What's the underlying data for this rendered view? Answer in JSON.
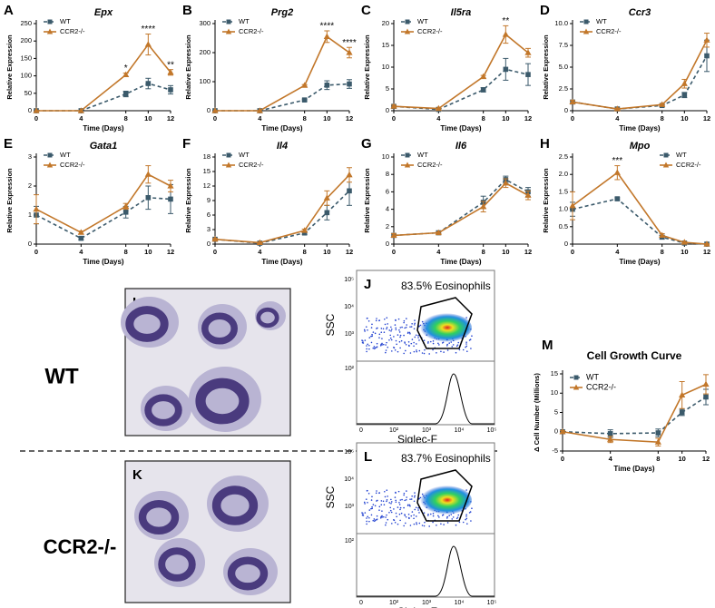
{
  "chart_data": [
    {
      "type": "line",
      "panel": "A",
      "title": "Epx",
      "xlabel": "Time (Days)",
      "ylabel": "Relative Expression",
      "x": [
        0,
        4,
        8,
        10,
        12
      ],
      "xlim": [
        0,
        12
      ],
      "xticks": [
        0,
        4,
        8,
        10,
        12
      ],
      "ylim": [
        0,
        250
      ],
      "yticks": [
        0,
        50,
        100,
        150,
        200,
        250
      ],
      "legend": "upper left",
      "series": [
        {
          "name": "WT",
          "color": "#3b5a6b",
          "dashed": true,
          "marker": "square",
          "values": [
            0,
            0,
            48,
            78,
            60
          ],
          "errors": [
            0,
            0,
            8,
            15,
            12
          ]
        },
        {
          "name": "CCR2-/-",
          "color": "#c2772a",
          "dashed": false,
          "marker": "triangle",
          "values": [
            0,
            0,
            103,
            190,
            110
          ],
          "errors": [
            0,
            0,
            5,
            30,
            8
          ]
        }
      ],
      "annotations": [
        {
          "text": "*",
          "x": 8
        },
        {
          "text": "****",
          "x": 10
        },
        {
          "text": "**",
          "x": 12
        }
      ]
    },
    {
      "type": "line",
      "panel": "B",
      "title": "Prg2",
      "xlabel": "Time (Days)",
      "ylabel": "Relative Expression",
      "x": [
        0,
        4,
        8,
        10,
        12
      ],
      "xlim": [
        0,
        12
      ],
      "xticks": [
        0,
        4,
        8,
        10,
        12
      ],
      "ylim": [
        0,
        300
      ],
      "yticks": [
        0,
        100,
        200,
        300
      ],
      "legend": "upper left",
      "series": [
        {
          "name": "WT",
          "color": "#3b5a6b",
          "dashed": true,
          "marker": "square",
          "values": [
            0,
            0,
            37,
            88,
            92
          ],
          "errors": [
            0,
            0,
            3,
            15,
            15
          ]
        },
        {
          "name": "CCR2-/-",
          "color": "#c2772a",
          "dashed": false,
          "marker": "triangle",
          "values": [
            0,
            0,
            87,
            255,
            200
          ],
          "errors": [
            0,
            0,
            3,
            20,
            18
          ]
        }
      ],
      "annotations": [
        {
          "text": "****",
          "x": 10
        },
        {
          "text": "****",
          "x": 12
        }
      ]
    },
    {
      "type": "line",
      "panel": "C",
      "title": "Il5ra",
      "xlabel": "Time (Days)",
      "ylabel": "Relative Expression",
      "x": [
        0,
        4,
        8,
        10,
        12
      ],
      "xlim": [
        0,
        12
      ],
      "xticks": [
        0,
        4,
        8,
        10,
        12
      ],
      "ylim": [
        0,
        20
      ],
      "yticks": [
        0,
        5,
        10,
        15,
        20
      ],
      "legend": "upper left",
      "series": [
        {
          "name": "WT",
          "color": "#3b5a6b",
          "dashed": true,
          "marker": "square",
          "values": [
            1,
            0.3,
            4.8,
            9.5,
            8.3
          ],
          "errors": [
            0.2,
            0.1,
            0.5,
            2.5,
            2.5
          ]
        },
        {
          "name": "CCR2-/-",
          "color": "#c2772a",
          "dashed": false,
          "marker": "triangle",
          "values": [
            1,
            0.5,
            7.8,
            17.5,
            13.3
          ],
          "errors": [
            0.3,
            0.1,
            0.3,
            2,
            1
          ]
        }
      ],
      "annotations": [
        {
          "text": "**",
          "x": 10
        }
      ]
    },
    {
      "type": "line",
      "panel": "D",
      "title": "Ccr3",
      "xlabel": "Time (Days)",
      "ylabel": "Relative Expression",
      "x": [
        0,
        4,
        8,
        10,
        12
      ],
      "xlim": [
        0,
        12
      ],
      "xticks": [
        0,
        4,
        8,
        10,
        12
      ],
      "ylim": [
        0,
        10
      ],
      "yticks": [
        0,
        2.5,
        {
          "value": 5,
          "label": "5.0"
        },
        7.5,
        {
          "value": 10,
          "label": "10.0"
        }
      ],
      "legend": "upper left",
      "series": [
        {
          "name": "WT",
          "color": "#3b5a6b",
          "dashed": true,
          "marker": "square",
          "values": [
            1,
            0.2,
            0.6,
            1.8,
            6.3
          ],
          "errors": [
            0.2,
            0.1,
            0.1,
            0.3,
            1.8
          ]
        },
        {
          "name": "CCR2-/-",
          "color": "#c2772a",
          "dashed": false,
          "marker": "triangle",
          "values": [
            1,
            0.2,
            0.7,
            3.1,
            8.1
          ],
          "errors": [
            0.2,
            0.1,
            0.1,
            0.5,
            0.8
          ]
        }
      ],
      "annotations": []
    },
    {
      "type": "line",
      "panel": "E",
      "title": "Gata1",
      "xlabel": "Time (Days)",
      "ylabel": "Relative Expression",
      "x": [
        0,
        4,
        8,
        10,
        12
      ],
      "xlim": [
        0,
        12
      ],
      "xticks": [
        0,
        4,
        8,
        10,
        12
      ],
      "ylim": [
        0,
        3
      ],
      "yticks": [
        0,
        1,
        2,
        3
      ],
      "legend": "upper left",
      "series": [
        {
          "name": "WT",
          "color": "#3b5a6b",
          "dashed": true,
          "marker": "square",
          "values": [
            1,
            0.2,
            1.1,
            1.6,
            1.55
          ],
          "errors": [
            0.3,
            0.05,
            0.2,
            0.4,
            0.5
          ]
        },
        {
          "name": "CCR2-/-",
          "color": "#c2772a",
          "dashed": false,
          "marker": "triangle",
          "values": [
            1.2,
            0.4,
            1.3,
            2.4,
            2
          ],
          "errors": [
            0.5,
            0.05,
            0.1,
            0.3,
            0.2
          ]
        }
      ],
      "annotations": []
    },
    {
      "type": "line",
      "panel": "F",
      "title": "Il4",
      "xlabel": "Time (Days)",
      "ylabel": "Relative Expression",
      "x": [
        0,
        4,
        8,
        10,
        12
      ],
      "xlim": [
        0,
        12
      ],
      "xticks": [
        0,
        4,
        8,
        10,
        12
      ],
      "ylim": [
        0,
        18
      ],
      "yticks": [
        0,
        3,
        6,
        9,
        12,
        15,
        18
      ],
      "legend": "upper left",
      "series": [
        {
          "name": "WT",
          "color": "#3b5a6b",
          "dashed": true,
          "marker": "square",
          "values": [
            1,
            0.2,
            2.3,
            6.5,
            11
          ],
          "errors": [
            0.2,
            0.1,
            0.3,
            1.5,
            3
          ]
        },
        {
          "name": "CCR2-/-",
          "color": "#c2772a",
          "dashed": false,
          "marker": "triangle",
          "values": [
            1,
            0.3,
            2.8,
            9.5,
            14.3
          ],
          "errors": [
            0.2,
            0.1,
            0.3,
            1.5,
            1.5
          ]
        }
      ],
      "annotations": []
    },
    {
      "type": "line",
      "panel": "G",
      "title": "Il6",
      "xlabel": "Time (Days)",
      "ylabel": "Relative Expression",
      "x": [
        0,
        4,
        8,
        10,
        12
      ],
      "xlim": [
        0,
        12
      ],
      "xticks": [
        0,
        4,
        8,
        10,
        12
      ],
      "ylim": [
        0,
        10
      ],
      "yticks": [
        0,
        2,
        4,
        6,
        8,
        10
      ],
      "legend": "upper left",
      "series": [
        {
          "name": "WT",
          "color": "#3b5a6b",
          "dashed": true,
          "marker": "square",
          "values": [
            1,
            1.3,
            4.8,
            7.4,
            6
          ],
          "errors": [
            0.2,
            0.1,
            0.7,
            0.4,
            0.5
          ]
        },
        {
          "name": "CCR2-/-",
          "color": "#c2772a",
          "dashed": false,
          "marker": "triangle",
          "values": [
            1,
            1.3,
            4.3,
            7,
            5.6
          ],
          "errors": [
            0.2,
            0.1,
            0.6,
            0.5,
            0.5
          ]
        }
      ],
      "annotations": []
    },
    {
      "type": "line",
      "panel": "H",
      "title": "Mpo",
      "xlabel": "Time (Days)",
      "ylabel": "Relative Expression",
      "x": [
        0,
        4,
        8,
        10,
        12
      ],
      "xlim": [
        0,
        12
      ],
      "xticks": [
        0,
        4,
        8,
        10,
        12
      ],
      "ylim": [
        0,
        2.5
      ],
      "yticks": [
        0,
        0.5,
        {
          "value": 1,
          "label": "1.0"
        },
        1.5,
        {
          "value": 2,
          "label": "2.0"
        },
        2.5
      ],
      "legend": "upper right",
      "series": [
        {
          "name": "WT",
          "color": "#3b5a6b",
          "dashed": true,
          "marker": "square",
          "values": [
            1,
            1.3,
            0.2,
            0.03,
            0
          ],
          "errors": [
            0.2,
            0.03,
            0.05,
            0.02,
            0.01
          ]
        },
        {
          "name": "CCR2-/-",
          "color": "#c2772a",
          "dashed": false,
          "marker": "triangle",
          "values": [
            1.1,
            2.05,
            0.25,
            0.05,
            0
          ],
          "errors": [
            0.4,
            0.2,
            0.05,
            0.02,
            0.01
          ]
        }
      ],
      "annotations": [
        {
          "text": "***",
          "x": 4
        }
      ]
    },
    {
      "type": "line",
      "panel": "M",
      "title": "Cell Growth Curve",
      "xlabel": "Time (Days)",
      "ylabel": "Δ Cell Number (Millions)",
      "x": [
        0,
        4,
        8,
        10,
        12
      ],
      "xlim": [
        0,
        12
      ],
      "xticks": [
        0,
        4,
        8,
        10,
        12
      ],
      "ylim": [
        -5,
        15
      ],
      "yticks": [
        -5,
        0,
        5,
        10,
        15
      ],
      "legend": "upper left",
      "series": [
        {
          "name": "WT",
          "color": "#3b5a6b",
          "dashed": true,
          "marker": "square",
          "values": [
            0,
            -0.5,
            -0.3,
            5,
            9
          ],
          "errors": [
            0.3,
            1,
            1,
            0.8,
            2
          ]
        },
        {
          "name": "CCR2-/-",
          "color": "#c2772a",
          "dashed": false,
          "marker": "triangle",
          "values": [
            0,
            -2,
            -2.7,
            9.5,
            12.3
          ],
          "errors": [
            0.3,
            0.8,
            1,
            3.5,
            2.5
          ]
        }
      ],
      "annotations": []
    }
  ],
  "figure": {
    "group_labels": [
      "WT",
      "CCR2-/-"
    ],
    "micrograph_letters": [
      "I",
      "K"
    ],
    "flow": [
      {
        "letter": "J",
        "gate": "83.5% Eosinophils",
        "ylabel": "SSC",
        "xlabel": "Siglec-F",
        "yticks_top": [
          "10⁵",
          "10⁴",
          "10³"
        ],
        "yticks_bottom": [
          "10²"
        ],
        "xticks": [
          "0",
          "10²",
          "10³",
          "10⁴",
          "10⁵"
        ]
      },
      {
        "letter": "L",
        "gate": "83.7% Eosinophils",
        "ylabel": "SSC",
        "xlabel": "Siglec-F",
        "yticks_top": [
          "10⁵",
          "10⁴",
          "10³"
        ],
        "yticks_bottom": [
          "10²"
        ],
        "xticks": [
          "0",
          "10²",
          "10³",
          "10⁴",
          "10⁵"
        ]
      }
    ]
  }
}
